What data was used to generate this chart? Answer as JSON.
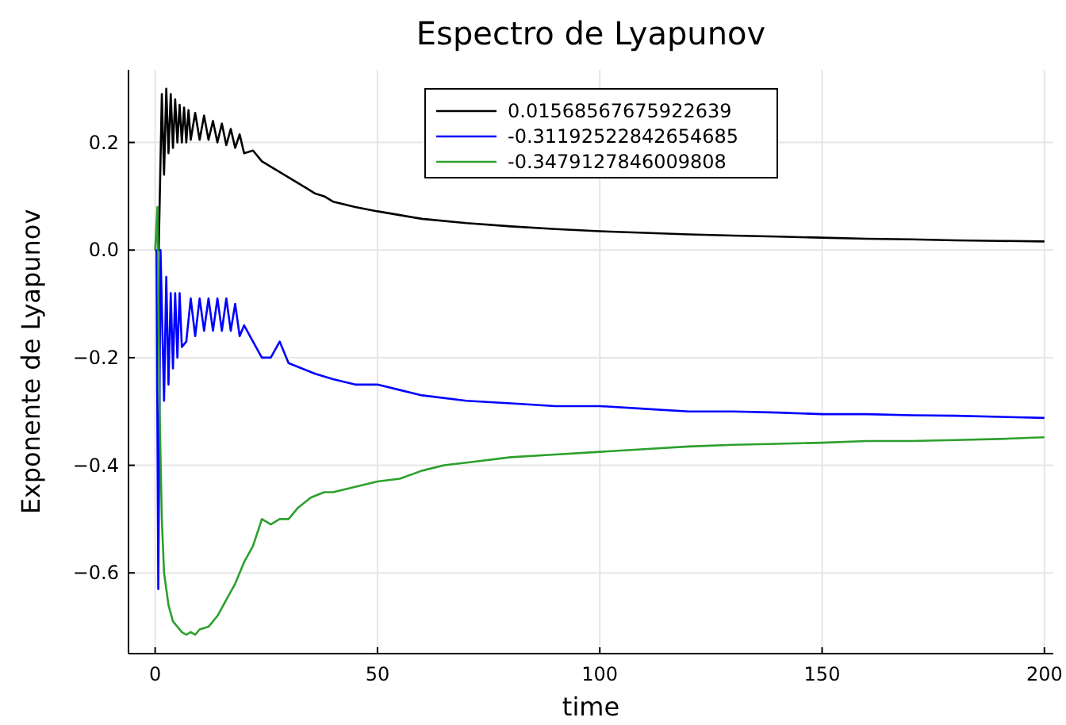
{
  "chart_data": {
    "type": "line",
    "title": "Espectro de Lyapunov",
    "xlabel": "time",
    "ylabel": "Exponente de Lyapunov",
    "xlim": [
      -6,
      202
    ],
    "ylim": [
      -0.75,
      0.335
    ],
    "xticks": [
      0,
      50,
      100,
      150,
      200
    ],
    "yticks": [
      -0.6,
      -0.4,
      -0.2,
      {
        "value": 0,
        "label": "0.0"
      },
      0.2
    ],
    "grid": true,
    "legend": "top right",
    "series": [
      {
        "name": "0.01568567675922639",
        "color": "#000000",
        "x": [
          0,
          0.8,
          1.5,
          2,
          2.5,
          3,
          3.5,
          4,
          4.5,
          5,
          5.5,
          6,
          6.5,
          7,
          7.5,
          8,
          9,
          10,
          11,
          12,
          13,
          14,
          15,
          16,
          17,
          18,
          19,
          20,
          22,
          24,
          26,
          28,
          30,
          32,
          34,
          36,
          38,
          40,
          45,
          50,
          55,
          60,
          70,
          80,
          90,
          100,
          110,
          120,
          130,
          140,
          150,
          160,
          170,
          180,
          190,
          200
        ],
        "values": [
          0,
          0.0,
          0.29,
          0.14,
          0.3,
          0.18,
          0.29,
          0.19,
          0.28,
          0.2,
          0.27,
          0.2,
          0.265,
          0.2,
          0.26,
          0.205,
          0.255,
          0.205,
          0.25,
          0.205,
          0.24,
          0.2,
          0.235,
          0.195,
          0.225,
          0.19,
          0.215,
          0.18,
          0.185,
          0.165,
          0.155,
          0.145,
          0.135,
          0.125,
          0.115,
          0.105,
          0.1,
          0.09,
          0.08,
          0.072,
          0.065,
          0.058,
          0.05,
          0.044,
          0.039,
          0.035,
          0.032,
          0.029,
          0.027,
          0.025,
          0.023,
          0.021,
          0.02,
          0.018,
          0.017,
          0.016
        ]
      },
      {
        "name": "-0.31192522842654685",
        "color": "#0000ff",
        "x": [
          0,
          0.3,
          0.7,
          1.2,
          2,
          2.5,
          3,
          3.5,
          4,
          4.5,
          5,
          5.5,
          6,
          7,
          8,
          9,
          10,
          11,
          12,
          13,
          14,
          15,
          16,
          17,
          18,
          19,
          20,
          22,
          24,
          26,
          28,
          30,
          33,
          36,
          40,
          45,
          50,
          55,
          60,
          70,
          80,
          90,
          100,
          110,
          120,
          130,
          140,
          150,
          160,
          170,
          180,
          190,
          200
        ],
        "values": [
          0,
          0,
          -0.63,
          0.0,
          -0.28,
          -0.05,
          -0.25,
          -0.08,
          -0.22,
          -0.08,
          -0.2,
          -0.08,
          -0.18,
          -0.17,
          -0.09,
          -0.16,
          -0.09,
          -0.15,
          -0.09,
          -0.15,
          -0.09,
          -0.15,
          -0.09,
          -0.15,
          -0.1,
          -0.16,
          -0.14,
          -0.17,
          -0.2,
          -0.2,
          -0.17,
          -0.21,
          -0.22,
          -0.23,
          -0.24,
          -0.25,
          -0.25,
          -0.26,
          -0.27,
          -0.28,
          -0.285,
          -0.29,
          -0.29,
          -0.295,
          -0.3,
          -0.3,
          -0.302,
          -0.305,
          -0.305,
          -0.307,
          -0.308,
          -0.31,
          -0.312
        ]
      },
      {
        "name": "-0.3479127846009808",
        "color": "#2ca02c",
        "x": [
          0,
          0.5,
          1,
          1.5,
          2,
          3,
          4,
          5,
          6,
          7,
          8,
          9,
          10,
          12,
          14,
          16,
          18,
          20,
          22,
          24,
          26,
          28,
          30,
          32,
          35,
          38,
          40,
          45,
          50,
          55,
          60,
          65,
          70,
          80,
          90,
          100,
          110,
          120,
          130,
          140,
          150,
          160,
          170,
          180,
          190,
          200
        ],
        "values": [
          0,
          0.08,
          -0.3,
          -0.5,
          -0.6,
          -0.66,
          -0.69,
          -0.7,
          -0.71,
          -0.715,
          -0.71,
          -0.715,
          -0.705,
          -0.7,
          -0.68,
          -0.65,
          -0.62,
          -0.58,
          -0.55,
          -0.5,
          -0.51,
          -0.5,
          -0.5,
          -0.48,
          -0.46,
          -0.45,
          -0.45,
          -0.44,
          -0.43,
          -0.425,
          -0.41,
          -0.4,
          -0.395,
          -0.385,
          -0.38,
          -0.375,
          -0.37,
          -0.365,
          -0.362,
          -0.36,
          -0.358,
          -0.355,
          -0.355,
          -0.353,
          -0.351,
          -0.348
        ]
      }
    ]
  }
}
